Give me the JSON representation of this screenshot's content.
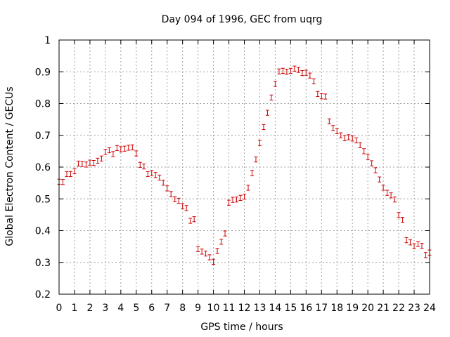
{
  "chart_data": {
    "type": "scatter",
    "title": "Day 094 of 1996, GEC from uqrg",
    "xlabel": "GPS time / hours",
    "ylabel": "Global Electron Content / GECUs",
    "xlim": [
      0,
      24
    ],
    "ylim": [
      0.2,
      1.0
    ],
    "grid": true,
    "xticks": [
      "0",
      "1",
      "2",
      "3",
      "4",
      "5",
      "6",
      "7",
      "8",
      "9",
      "10",
      "11",
      "12",
      "13",
      "14",
      "15",
      "16",
      "17",
      "18",
      "19",
      "20",
      "21",
      "22",
      "23",
      "24"
    ],
    "yticks": [
      "0.2",
      "0.3",
      "0.4",
      "0.5",
      "0.6",
      "0.7",
      "0.8",
      "0.9",
      "1"
    ],
    "error": 0.008,
    "series": [
      {
        "name": "GEC",
        "color": "#cc0000",
        "x": [
          0.0,
          0.25,
          0.5,
          0.75,
          1.0,
          1.25,
          1.5,
          1.75,
          2.0,
          2.25,
          2.5,
          2.75,
          3.0,
          3.25,
          3.5,
          3.75,
          4.0,
          4.25,
          4.5,
          4.75,
          5.0,
          5.25,
          5.5,
          5.75,
          6.0,
          6.25,
          6.5,
          6.75,
          7.0,
          7.25,
          7.5,
          7.75,
          8.0,
          8.25,
          8.5,
          8.75,
          9.0,
          9.25,
          9.5,
          9.75,
          10.0,
          10.25,
          10.5,
          10.75,
          11.0,
          11.25,
          11.5,
          11.75,
          12.0,
          12.25,
          12.5,
          12.75,
          13.0,
          13.25,
          13.5,
          13.75,
          14.0,
          14.25,
          14.5,
          14.75,
          15.0,
          15.25,
          15.5,
          15.75,
          16.0,
          16.25,
          16.5,
          16.75,
          17.0,
          17.25,
          17.5,
          17.75,
          18.0,
          18.25,
          18.5,
          18.75,
          19.0,
          19.25,
          19.5,
          19.75,
          20.0,
          20.25,
          20.5,
          20.75,
          21.0,
          21.25,
          21.5,
          21.75,
          22.0,
          22.25,
          22.5,
          22.75,
          23.0,
          23.25,
          23.5,
          23.75,
          24.0
        ],
        "y": [
          0.554,
          0.553,
          0.578,
          0.578,
          0.587,
          0.611,
          0.61,
          0.608,
          0.614,
          0.613,
          0.62,
          0.627,
          0.648,
          0.653,
          0.641,
          0.66,
          0.656,
          0.658,
          0.661,
          0.662,
          0.643,
          0.607,
          0.602,
          0.578,
          0.581,
          0.575,
          0.567,
          0.551,
          0.533,
          0.515,
          0.499,
          0.494,
          0.477,
          0.471,
          0.431,
          0.436,
          0.342,
          0.334,
          0.328,
          0.316,
          0.302,
          0.336,
          0.365,
          0.391,
          0.488,
          0.497,
          0.498,
          0.503,
          0.507,
          0.535,
          0.581,
          0.624,
          0.676,
          0.726,
          0.771,
          0.819,
          0.862,
          0.901,
          0.903,
          0.9,
          0.903,
          0.91,
          0.906,
          0.896,
          0.897,
          0.888,
          0.87,
          0.83,
          0.823,
          0.822,
          0.744,
          0.723,
          0.713,
          0.7,
          0.691,
          0.694,
          0.69,
          0.684,
          0.669,
          0.65,
          0.632,
          0.612,
          0.59,
          0.561,
          0.535,
          0.519,
          0.511,
          0.498,
          0.449,
          0.434,
          0.37,
          0.363,
          0.351,
          0.358,
          0.352,
          0.323,
          0.331
        ]
      }
    ]
  }
}
